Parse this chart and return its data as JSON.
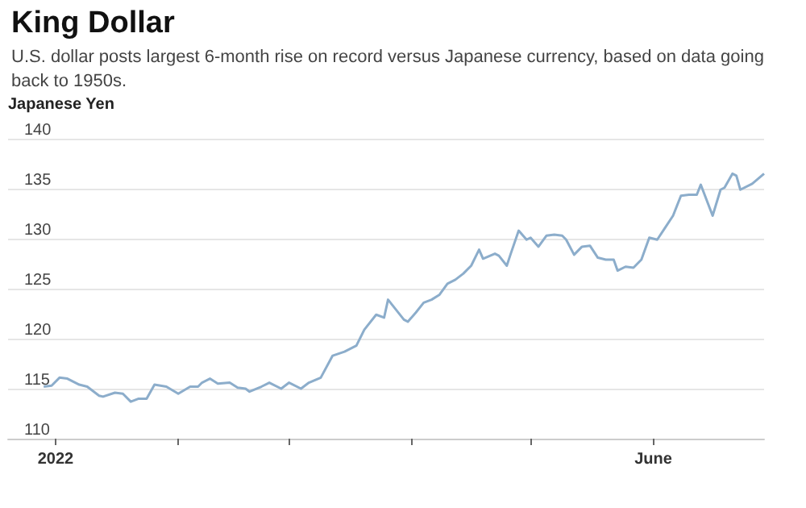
{
  "chart_data": {
    "type": "line",
    "title": "King Dollar",
    "subtitle": "U.S. dollar posts largest 6-month rise on record versus Japanese currency, based on data going back to 1950s.",
    "ylabel": "Japanese Yen",
    "color": "#8cadcb",
    "grid": "y",
    "marker": "none",
    "line_style": "solid",
    "x": [
      "2021-12-29",
      "2021-12-31",
      "2022-01-02",
      "2022-01-04",
      "2022-01-07",
      "2022-01-09",
      "2022-01-12",
      "2022-01-13",
      "2022-01-16",
      "2022-01-18",
      "2022-01-20",
      "2022-01-22",
      "2022-01-24",
      "2022-01-26",
      "2022-01-29",
      "2022-02-01",
      "2022-02-04",
      "2022-02-06",
      "2022-02-07",
      "2022-02-09",
      "2022-02-11",
      "2022-02-14",
      "2022-02-16",
      "2022-02-18",
      "2022-02-19",
      "2022-02-22",
      "2022-02-24",
      "2022-02-27",
      "2022-03-01",
      "2022-03-04",
      "2022-03-06",
      "2022-03-09",
      "2022-03-12",
      "2022-03-15",
      "2022-03-18",
      "2022-03-20",
      "2022-03-23",
      "2022-03-25",
      "2022-03-26",
      "2022-03-30",
      "2022-03-31",
      "2022-04-02",
      "2022-04-04",
      "2022-04-06",
      "2022-04-08",
      "2022-04-10",
      "2022-04-12",
      "2022-04-14",
      "2022-04-16",
      "2022-04-18",
      "2022-04-19",
      "2022-04-22",
      "2022-04-23",
      "2022-04-25",
      "2022-04-26",
      "2022-04-28",
      "2022-04-30",
      "2022-05-01",
      "2022-05-03",
      "2022-05-05",
      "2022-05-07",
      "2022-05-09",
      "2022-05-10",
      "2022-05-12",
      "2022-05-14",
      "2022-05-16",
      "2022-05-18",
      "2022-05-20",
      "2022-05-22",
      "2022-05-23",
      "2022-05-25",
      "2022-05-27",
      "2022-05-29",
      "2022-05-31",
      "2022-06-02",
      "2022-06-04",
      "2022-06-06",
      "2022-06-08",
      "2022-06-10",
      "2022-06-12",
      "2022-06-13",
      "2022-06-16",
      "2022-06-18",
      "2022-06-19",
      "2022-06-21",
      "2022-06-22",
      "2022-06-23",
      "2022-06-26",
      "2022-06-29"
    ],
    "values": [
      115.2,
      115.3,
      116.1,
      116.0,
      115.4,
      115.2,
      114.3,
      114.2,
      114.6,
      114.5,
      113.7,
      114.0,
      114.0,
      115.4,
      115.2,
      114.5,
      115.2,
      115.2,
      115.6,
      116.0,
      115.5,
      115.6,
      115.1,
      115.0,
      114.7,
      115.2,
      115.6,
      115.0,
      115.6,
      115.0,
      115.6,
      116.1,
      118.3,
      118.7,
      119.3,
      120.9,
      122.4,
      122.1,
      123.9,
      121.9,
      121.7,
      122.6,
      123.6,
      123.9,
      124.4,
      125.5,
      125.9,
      126.5,
      127.3,
      128.9,
      128.0,
      128.5,
      128.3,
      127.3,
      128.5,
      130.8,
      129.9,
      130.1,
      129.2,
      130.3,
      130.4,
      130.3,
      129.9,
      128.4,
      129.2,
      129.3,
      128.1,
      127.9,
      127.9,
      126.8,
      127.2,
      127.1,
      127.9,
      130.1,
      129.9,
      131.1,
      132.3,
      134.3,
      134.4,
      134.4,
      135.4,
      132.3,
      134.9,
      135.1,
      136.5,
      136.3,
      134.9,
      135.5,
      136.5
    ],
    "xlim": [
      "2021-12-20",
      "2022-06-29"
    ],
    "xticks": [
      {
        "value": "2022-01-01",
        "label": "2022"
      },
      {
        "value": "2022-02-01",
        "label": null
      },
      {
        "value": "2022-03-01",
        "label": null
      },
      {
        "value": "2022-04-01",
        "label": null
      },
      {
        "value": "2022-05-01",
        "label": null
      },
      {
        "value": "2022-06-01",
        "label": "June"
      }
    ],
    "ylim": [
      110,
      140
    ],
    "yticks": [
      110,
      115,
      120,
      125,
      130,
      135,
      140
    ]
  }
}
